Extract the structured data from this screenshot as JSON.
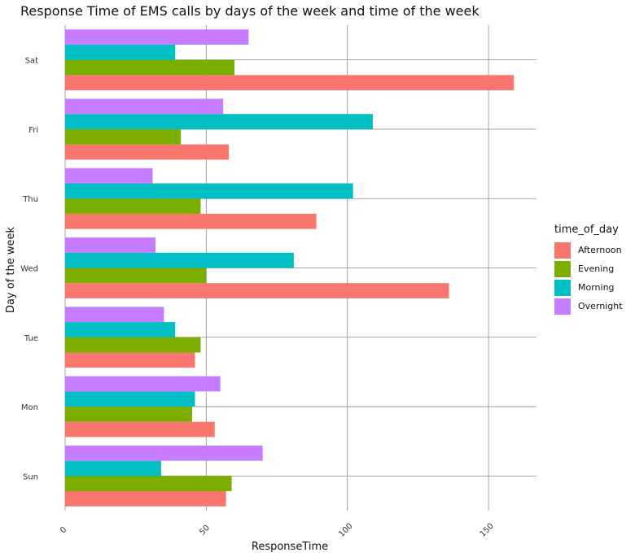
{
  "chart_data": {
    "type": "bar",
    "orientation": "horizontal",
    "title": "Response Time of EMS calls by days of the week and time of the week",
    "xlabel": "ResponseTime",
    "ylabel": "Day of the week",
    "categories": [
      "Sun",
      "Mon",
      "Tue",
      "Wed",
      "Thu",
      "Fri",
      "Sat"
    ],
    "xlim": [
      0,
      167
    ],
    "xticks": [
      0,
      50,
      100,
      150
    ],
    "grid": true,
    "legend_title": "time_of_day",
    "legend_position": "right",
    "series": [
      {
        "name": "Afternoon",
        "color": "#F8766D",
        "values": [
          57,
          53,
          46,
          136,
          89,
          58,
          159
        ]
      },
      {
        "name": "Evening",
        "color": "#7CAE00",
        "values": [
          59,
          45,
          48,
          50,
          48,
          41,
          60
        ]
      },
      {
        "name": "Morning",
        "color": "#00BFC4",
        "values": [
          34,
          46,
          39,
          81,
          102,
          109,
          39
        ]
      },
      {
        "name": "Overnight",
        "color": "#C77CFF",
        "values": [
          70,
          55,
          35,
          32,
          31,
          56,
          65
        ]
      }
    ]
  }
}
